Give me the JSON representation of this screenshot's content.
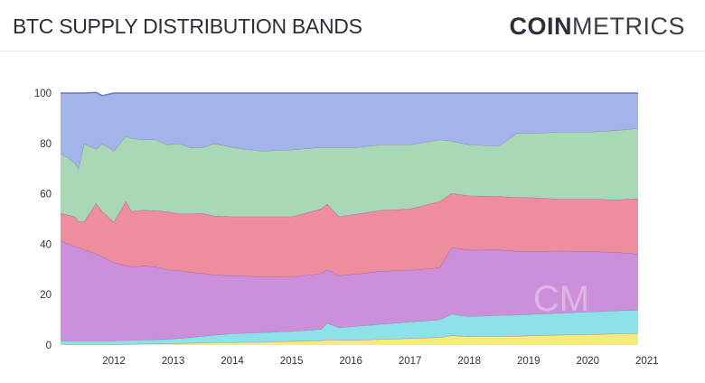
{
  "header": {
    "title": "BTC SUPPLY DISTRIBUTION BANDS",
    "logo_bold": "COIN",
    "logo_light": "METRICS",
    "watermark": "CM"
  },
  "chart_data": {
    "type": "area",
    "stacked": true,
    "title": "BTC SUPPLY DISTRIBUTION BANDS",
    "xlabel": "",
    "ylabel": "",
    "xlim": [
      2011.6,
      2021.35
    ],
    "ylim": [
      0,
      100
    ],
    "x_ticks": [
      "2012",
      "2013",
      "2014",
      "2015",
      "2016",
      "2017",
      "2018",
      "2019",
      "2020",
      "2021"
    ],
    "y_ticks": [
      "0",
      "20",
      "40",
      "60",
      "80",
      "100"
    ],
    "legend": "none",
    "grid": false,
    "x": [
      2011.6,
      2011.75,
      2011.85,
      2011.9,
      2012.0,
      2012.2,
      2012.3,
      2012.5,
      2012.7,
      2012.8,
      2013.0,
      2013.2,
      2013.4,
      2013.6,
      2013.8,
      2014.0,
      2014.2,
      2014.5,
      2015.0,
      2015.5,
      2016.0,
      2016.1,
      2016.3,
      2016.6,
      2017.0,
      2017.5,
      2018.0,
      2018.2,
      2018.5,
      2019.0,
      2019.3,
      2019.6,
      2020.0,
      2020.5,
      2021.0,
      2021.35
    ],
    "series": [
      {
        "color": "#f5ec7c",
        "values": [
          0.3,
          0.3,
          0.3,
          0.3,
          0.3,
          0.3,
          0.3,
          0.3,
          0.4,
          0.4,
          0.5,
          0.5,
          0.6,
          0.7,
          0.8,
          0.9,
          1.0,
          1.1,
          1.2,
          1.5,
          1.8,
          2.2,
          2.0,
          2.0,
          2.3,
          2.7,
          3.1,
          3.8,
          3.4,
          3.5,
          3.6,
          3.8,
          4.0,
          4.2,
          4.5,
          4.6
        ]
      },
      {
        "color": "#8de1e9",
        "values": [
          1.5,
          1.5,
          1.5,
          1.5,
          1.5,
          1.5,
          1.5,
          1.5,
          1.5,
          1.5,
          1.6,
          1.7,
          1.8,
          2.0,
          2.3,
          2.7,
          3.0,
          3.5,
          3.8,
          4.0,
          4.5,
          6.5,
          5.0,
          5.5,
          6.0,
          6.5,
          7.0,
          8.5,
          8.0,
          8.3,
          8.4,
          8.5,
          8.7,
          9.0,
          9.2,
          9.3
        ]
      },
      {
        "color": "#cc8fd9",
        "values": [
          39.5,
          38.3,
          37.2,
          37.0,
          36.0,
          34.5,
          33.3,
          31.0,
          29.7,
          29.2,
          29.3,
          29.0,
          27.5,
          27.0,
          25.8,
          24.9,
          23.8,
          23.0,
          22.2,
          21.5,
          22.2,
          21.3,
          20.6,
          20.7,
          21.1,
          20.5,
          20.6,
          26.5,
          26.3,
          26.0,
          25.3,
          24.9,
          24.7,
          24.0,
          23.1,
          22.2
        ]
      },
      {
        "color": "#ed8d9e",
        "values": [
          11.0,
          11.4,
          11.8,
          10.2,
          11.2,
          20.0,
          18.0,
          16.0,
          25.5,
          22.0,
          22.2,
          22.2,
          23.0,
          22.4,
          23.2,
          23.7,
          23.5,
          23.4,
          23.8,
          24.0,
          25.5,
          26.0,
          23.4,
          23.8,
          24.1,
          24.3,
          26.3,
          21.4,
          21.6,
          21.2,
          21.3,
          21.3,
          20.6,
          20.8,
          20.9,
          22.0
        ]
      },
      {
        "color": "#a9d8b6",
        "values": [
          23.7,
          22.5,
          21.2,
          21.0,
          31.0,
          21.5,
          26.9,
          28.2,
          25.9,
          28.9,
          27.9,
          28.1,
          26.6,
          27.9,
          26.2,
          26.3,
          28.7,
          27.5,
          26.0,
          26.5,
          24.5,
          22.5,
          27.5,
          26.5,
          26.0,
          25.5,
          24.5,
          20.8,
          20.2,
          20.0,
          25.4,
          25.5,
          26.5,
          26.5,
          27.5,
          27.9
        ]
      },
      {
        "color": "#a2b4ea",
        "values": [
          24.0,
          26.0,
          28.0,
          30.0,
          20.0,
          22.5,
          19.0,
          23.0,
          17.0,
          18.0,
          18.5,
          18.5,
          20.5,
          20.0,
          21.7,
          21.5,
          20.0,
          21.5,
          23.0,
          22.5,
          21.5,
          21.5,
          21.5,
          21.5,
          20.5,
          20.5,
          18.5,
          19.0,
          20.5,
          21.0,
          16.0,
          16.0,
          15.5,
          15.5,
          14.8,
          14.0
        ]
      }
    ]
  }
}
